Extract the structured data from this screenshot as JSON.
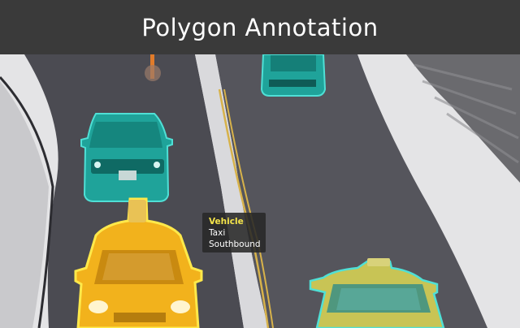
{
  "header": {
    "title": "Polygon Annotation"
  },
  "tooltip": {
    "category": "Vehicle",
    "type": "Taxi",
    "direction": "Southbound"
  },
  "colors": {
    "header_bg": "#3a3a3a",
    "teal_annotation": "#1fa39a",
    "teal_outline": "#4fe0d6",
    "yellow_annotation": "#f2b21c",
    "yellow_outline": "#ffe94a"
  }
}
